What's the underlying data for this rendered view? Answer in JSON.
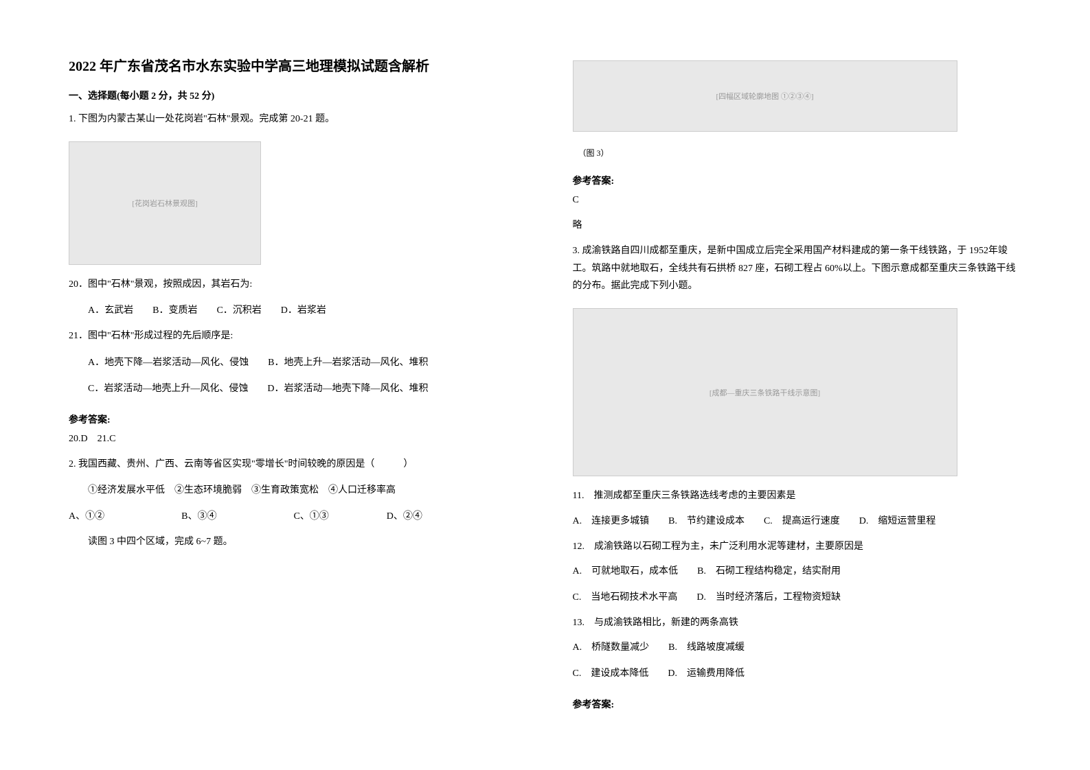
{
  "title": "2022 年广东省茂名市水东实验中学高三地理模拟试题含解析",
  "section1": "一、选择题(每小题 2 分，共 52 分)",
  "q1": {
    "stem": "1. 下图为内蒙古某山一处花岗岩\"石林\"景观。完成第 20-21 题。",
    "img_label": "[花岗岩石林景观图]",
    "q20": "20．图中\"石林\"景观，按照成因，其岩石为:",
    "q20_opts": "A．玄武岩　　B．变质岩　　C．沉积岩　　D．岩浆岩",
    "q21": "21．图中\"石林\"形成过程的先后顺序是:",
    "q21_optA": "A．地壳下降—岩浆活动—风化、侵蚀　　B．地壳上升—岩浆活动—风化、堆积",
    "q21_optC": "C．岩浆活动—地壳上升—风化、侵蚀　　D．岩浆活动—地壳下降—风化、堆积",
    "ans_label": "参考答案:",
    "ans": "20.D　21.C"
  },
  "q2": {
    "stem": "2. 我国西藏、贵州、广西、云南等省区实现\"零增长\"时间较晚的原因是（　　　）",
    "subs": "①经济发展水平低　②生态环境脆弱　③生育政策宽松　④人口迁移率高",
    "opts": "A、①②　　　　　　　　B、③④　　　　　　　　C、①③　　　　　　D、②④",
    "lead": "读图 3 中四个区域，完成 6~7 题。"
  },
  "right": {
    "img3_label": "[四幅区域轮廓地图 ①②③④]",
    "img3_cap": "（图 3）",
    "ans_label": "参考答案:",
    "ans1": "C",
    "ans2": "略"
  },
  "q3": {
    "stem": "3. 成渝铁路自四川成都至重庆，是新中国成立后完全采用国产材料建成的第一条干线铁路，于 1952年竣工。筑路中就地取石，全线共有石拱桥 827 座，石砌工程占 60%以上。下图示意成都至重庆三条铁路干线的分布。据此完成下列小题。",
    "img_label": "[成都—重庆三条铁路干线示意图]",
    "q11": "11.　推测成都至重庆三条铁路选线考虑的主要因素是",
    "q11_opts": "A.　连接更多城镇　　B.　节约建设成本　　C.　提高运行速度　　D.　缩短运营里程",
    "q12": "12.　成渝铁路以石砌工程为主，未广泛利用水泥等建材，主要原因是",
    "q12_optA": "A.　可就地取石，成本低　　B.　石砌工程结构稳定，结实耐用",
    "q12_optC": "C.　当地石砌技术水平高　　D.　当时经济落后，工程物资短缺",
    "q13": "13.　与成渝铁路相比，新建的两条高铁",
    "q13_optA": "A.　桥隧数量减少　　B.　线路坡度减缓",
    "q13_optC": "C.　建设成本降低　　D.　运输费用降低",
    "ans_label": "参考答案:"
  }
}
